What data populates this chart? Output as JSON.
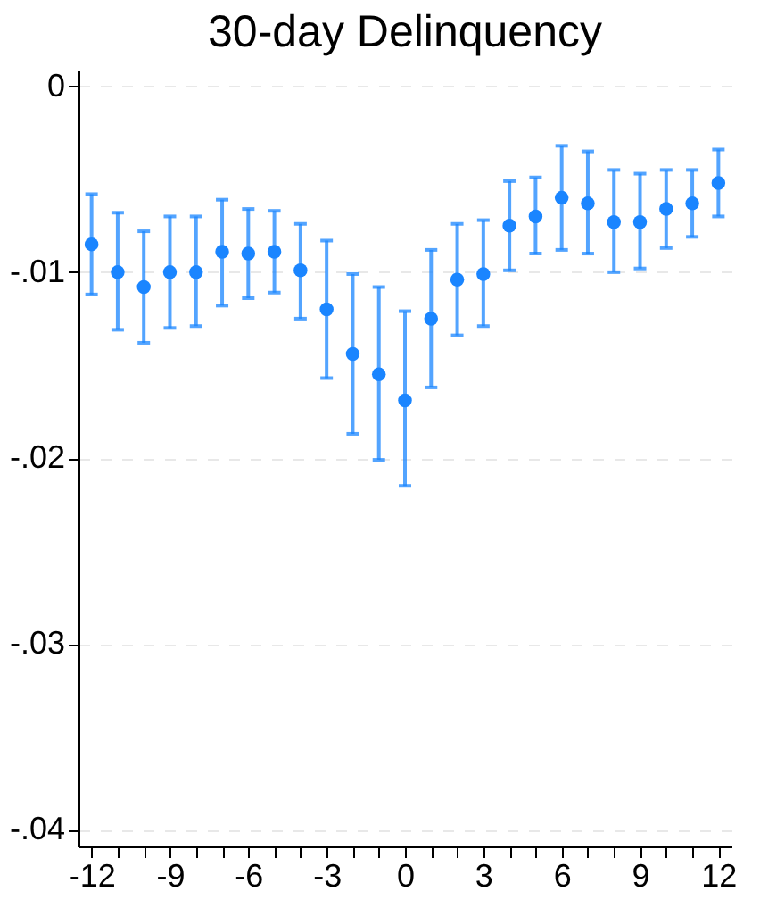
{
  "chart_data": {
    "type": "scatter",
    "title": "30-day Delinquency",
    "x": [
      -12,
      -11,
      -10,
      -9,
      -8,
      -7,
      -6,
      -5,
      -4,
      -3,
      -2,
      -1,
      0,
      1,
      2,
      3,
      4,
      5,
      6,
      7,
      8,
      9,
      10,
      11,
      12
    ],
    "series": [
      {
        "color": "#1a85ff",
        "values": [
          -0.0085,
          -0.01,
          -0.0108,
          -0.01,
          -0.01,
          -0.0089,
          -0.009,
          -0.0089,
          -0.0099,
          -0.012,
          -0.0144,
          -0.0155,
          -0.0169,
          -0.0125,
          -0.0104,
          -0.0101,
          -0.0075,
          -0.007,
          -0.006,
          -0.0063,
          -0.0073,
          -0.0073,
          -0.0066,
          -0.0063,
          -0.0052
        ],
        "errors": [
          [
            -0.0112,
            -0.0058
          ],
          [
            -0.0131,
            -0.0068
          ],
          [
            -0.0138,
            -0.0078
          ],
          [
            -0.013,
            -0.007
          ],
          [
            -0.0129,
            -0.007
          ],
          [
            -0.0118,
            -0.0061
          ],
          [
            -0.0114,
            -0.0066
          ],
          [
            -0.0111,
            -0.0067
          ],
          [
            -0.0125,
            -0.0074
          ],
          [
            -0.0157,
            -0.0083
          ],
          [
            -0.0187,
            -0.0101
          ],
          [
            -0.0201,
            -0.0108
          ],
          [
            -0.0215,
            -0.0121
          ],
          [
            -0.0162,
            -0.0088
          ],
          [
            -0.0134,
            -0.0074
          ],
          [
            -0.0129,
            -0.0072
          ],
          [
            -0.0099,
            -0.0051
          ],
          [
            -0.009,
            -0.0049
          ],
          [
            -0.0088,
            -0.0032
          ],
          [
            -0.009,
            -0.0035
          ],
          [
            -0.01,
            -0.0045
          ],
          [
            -0.0098,
            -0.0047
          ],
          [
            -0.0087,
            -0.0045
          ],
          [
            -0.0081,
            -0.0045
          ],
          [
            -0.007,
            -0.0034
          ]
        ]
      }
    ],
    "xlim": [
      -12.5,
      12.5
    ],
    "xticks": [
      -12,
      {
        "value": -11,
        "label": null
      },
      {
        "value": -10,
        "label": null
      },
      -9,
      {
        "value": -8,
        "label": null
      },
      {
        "value": -7,
        "label": null
      },
      -6,
      {
        "value": -5,
        "label": null
      },
      {
        "value": -4,
        "label": null
      },
      -3,
      {
        "value": -2,
        "label": null
      },
      {
        "value": -1,
        "label": null
      },
      0,
      {
        "value": 1,
        "label": null
      },
      {
        "value": 2,
        "label": null
      },
      3,
      {
        "value": 4,
        "label": null
      },
      {
        "value": 5,
        "label": null
      },
      6,
      {
        "value": 7,
        "label": null
      },
      {
        "value": 8,
        "label": null
      },
      9,
      {
        "value": 10,
        "label": null
      },
      {
        "value": 11,
        "label": null
      },
      12
    ],
    "ylim": [
      -0.0409,
      0.0009
    ],
    "yticks": [
      {
        "value": 0,
        "label": "0"
      },
      {
        "value": -0.01,
        "label": "-.01"
      },
      {
        "value": -0.02,
        "label": "-.02"
      },
      {
        "value": -0.03,
        "label": "-.03"
      },
      {
        "value": -0.04,
        "label": "-.04"
      }
    ],
    "grid": "y",
    "marker": "circle"
  }
}
